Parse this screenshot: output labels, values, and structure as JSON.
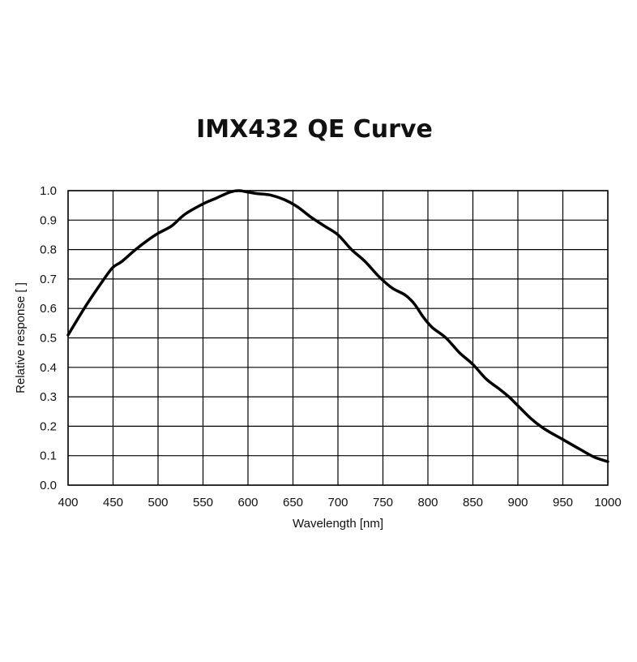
{
  "chart_data": {
    "type": "line",
    "title": "IMX432 QE Curve",
    "xlabel": "Wavelength [nm]",
    "ylabel": "Relative response [ ]",
    "xlim": [
      400,
      1000
    ],
    "ylim": [
      0.0,
      1.0
    ],
    "xticks": [
      "400",
      "450",
      "500",
      "550",
      "600",
      "650",
      "700",
      "750",
      "800",
      "850",
      "900",
      "950",
      "1000"
    ],
    "yticks": [
      "0.0",
      "0.1",
      "0.2",
      "0.3",
      "0.4",
      "0.5",
      "0.6",
      "0.7",
      "0.8",
      "0.9",
      "1.0"
    ],
    "grid": true,
    "line_color": "#000000",
    "series": [
      {
        "x": [
          400,
          420,
          440,
          450,
          460,
          475,
          490,
          500,
          515,
          530,
          550,
          565,
          580,
          590,
          600,
          610,
          625,
          640,
          655,
          670,
          685,
          700,
          715,
          730,
          745,
          760,
          775,
          785,
          795,
          805,
          820,
          835,
          850,
          865,
          880,
          890,
          900,
          915,
          930,
          950,
          970,
          985,
          1000
        ],
        "y": [
          0.51,
          0.61,
          0.7,
          0.74,
          0.76,
          0.8,
          0.835,
          0.855,
          0.88,
          0.92,
          0.955,
          0.975,
          0.995,
          1.0,
          0.995,
          0.99,
          0.985,
          0.97,
          0.945,
          0.91,
          0.88,
          0.85,
          0.8,
          0.76,
          0.71,
          0.67,
          0.645,
          0.615,
          0.57,
          0.535,
          0.5,
          0.45,
          0.41,
          0.36,
          0.325,
          0.3,
          0.27,
          0.225,
          0.19,
          0.155,
          0.12,
          0.095,
          0.08
        ]
      }
    ]
  }
}
